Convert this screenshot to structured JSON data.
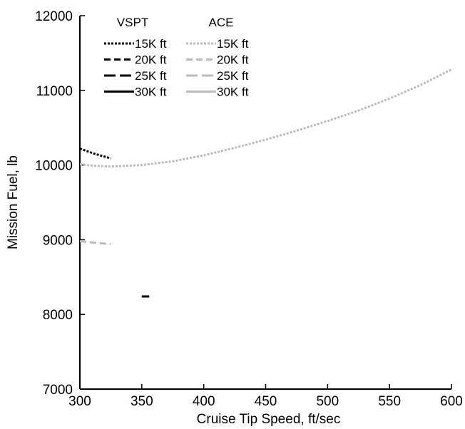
{
  "chart_data": {
    "type": "line",
    "title": "",
    "xlabel": "Cruise Tip Speed, ft/sec",
    "ylabel": "Mission Fuel, lb",
    "xlim": [
      300,
      600
    ],
    "ylim": [
      7000,
      12000
    ],
    "x_ticks": [
      300,
      350,
      400,
      450,
      500,
      550,
      600
    ],
    "y_ticks": [
      7000,
      8000,
      9000,
      10000,
      11000,
      12000
    ],
    "x_tick_labels": [
      "300",
      "350",
      "400",
      "450",
      "500",
      "550",
      "600"
    ],
    "y_tick_labels": [
      "7000",
      "8000",
      "9000",
      "10000",
      "11000",
      "12000"
    ],
    "grid": false,
    "legend_placement": "top-left",
    "legend_groups": [
      "VSPT",
      "ACE"
    ],
    "colors": {
      "VSPT": "#000000",
      "ACE": "#bbbbbb"
    },
    "series": [
      {
        "group": "VSPT",
        "name": "15K ft",
        "dash": "dotted",
        "x": [
          300,
          312,
          325
        ],
        "y": [
          10220,
          10150,
          10090
        ]
      },
      {
        "group": "VSPT",
        "name": "20K ft",
        "dash": "dashed",
        "x": [],
        "y": []
      },
      {
        "group": "VSPT",
        "name": "25K ft",
        "dash": "long-dash",
        "x": [
          350,
          356
        ],
        "y": [
          8240,
          8240
        ]
      },
      {
        "group": "VSPT",
        "name": "30K ft",
        "dash": "solid",
        "x": [],
        "y": []
      },
      {
        "group": "ACE",
        "name": "15K ft",
        "dash": "dotted",
        "x": [
          300,
          312,
          325,
          340,
          350,
          375,
          400,
          425,
          450,
          475,
          500,
          525,
          550,
          575,
          600
        ],
        "y": [
          10010,
          9990,
          9980,
          9990,
          10000,
          10050,
          10130,
          10230,
          10340,
          10460,
          10590,
          10730,
          10890,
          11070,
          11280
        ]
      },
      {
        "group": "ACE",
        "name": "20K ft",
        "dash": "dashed",
        "x": [
          300,
          312,
          325
        ],
        "y": [
          8980,
          8960,
          8940
        ]
      },
      {
        "group": "ACE",
        "name": "25K ft",
        "dash": "long-dash",
        "x": [],
        "y": []
      },
      {
        "group": "ACE",
        "name": "30K ft",
        "dash": "solid",
        "x": [],
        "y": []
      }
    ]
  }
}
